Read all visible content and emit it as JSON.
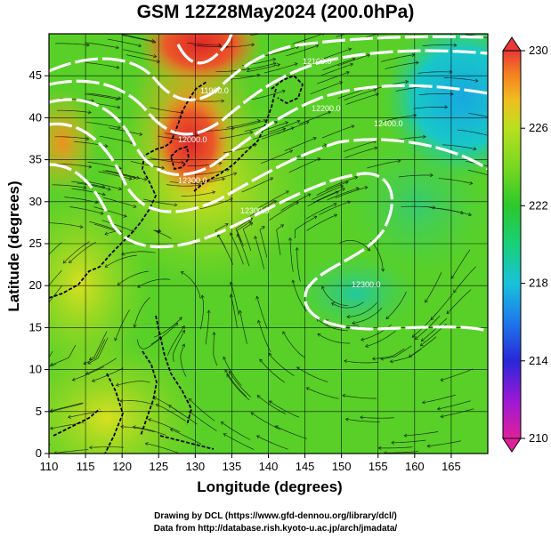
{
  "title": "GSM 12Z28May2024 (200.0hPa)",
  "axes": {
    "xlabel": "Longitude (degrees)",
    "ylabel": "Latitude  (degrees)",
    "xlim": [
      110,
      170
    ],
    "ylim": [
      0,
      50
    ],
    "xticks": [
      "110",
      "115",
      "120",
      "125",
      "130",
      "135",
      "140",
      "145",
      "150",
      "155",
      "160",
      "165"
    ],
    "yticks": [
      "0",
      "5",
      "10",
      "15",
      "20",
      "25",
      "30",
      "35",
      "40",
      "45"
    ]
  },
  "colorbar": {
    "labels": [
      "230",
      "226",
      "222",
      "218",
      "214",
      "210"
    ],
    "range": [
      210,
      230
    ],
    "colors": [
      "#e0209a",
      "#9a18d8",
      "#2828d8",
      "#1e78ec",
      "#18c2da",
      "#18d078",
      "#2cc82c",
      "#78d820",
      "#b8e020",
      "#f0c020",
      "#f48020",
      "#e83838"
    ]
  },
  "contour_labels": [
    "12000.0",
    "11900.0",
    "12100.0",
    "12300.0",
    "12200.0",
    "12300.0",
    "12400.0",
    "12300.0"
  ],
  "credits": [
    "Drawing by DCL (https://www.gfd-dennou.org/library/dcl/)",
    "Data from http://database.rish.kyoto-u.ac.jp/arch/jmadata/"
  ]
}
